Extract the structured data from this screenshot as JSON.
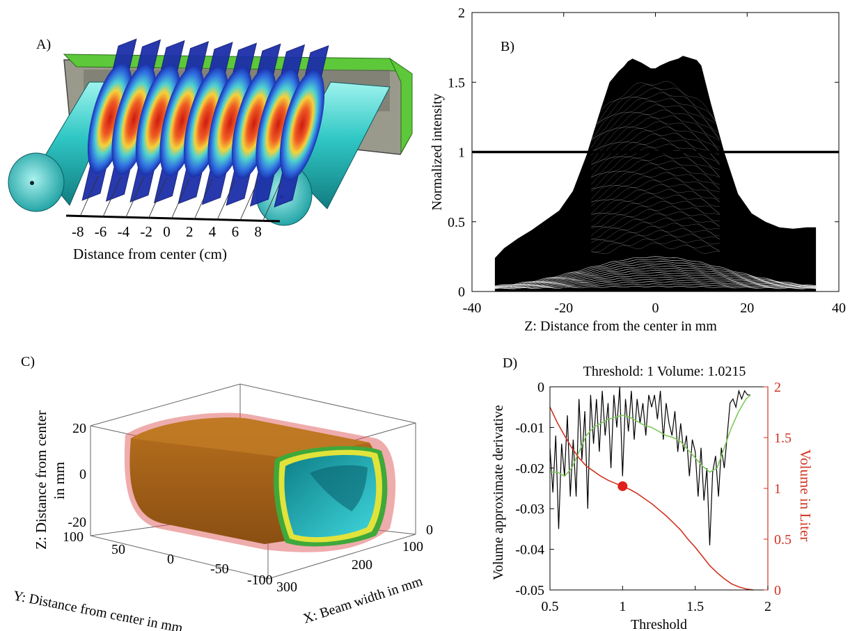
{
  "panels": {
    "A": {
      "label": "A)",
      "xlabel": "Distance from center (cm)",
      "ticks": [
        "-8",
        "-6",
        "-4",
        "-2",
        "0",
        "2",
        "4",
        "6",
        "8"
      ]
    },
    "C": {
      "label": "C)",
      "zlabel_line1": "Z: Distance from center",
      "zlabel_line2": "in mm",
      "ylabel": "Y: Distance from center in mm",
      "xlabel": "X: Beam width in mm",
      "z_ticks": [
        "20",
        "0",
        "-20"
      ],
      "y_ticks": [
        "100",
        "50",
        "0",
        "-50",
        "-100"
      ],
      "x_ticks": [
        "0",
        "100",
        "200",
        "300"
      ]
    }
  },
  "chart_data": [
    {
      "panel": "B)",
      "type": "line",
      "xlabel": "Z: Distance from the center in mm",
      "ylabel": "Normalized intensity",
      "xlim": [
        -40,
        40
      ],
      "ylim": [
        0,
        2
      ],
      "xticks": [
        -40,
        -20,
        0,
        20,
        40
      ],
      "yticks": [
        0,
        0.5,
        1,
        1.5,
        2
      ],
      "grid": false,
      "reference_line": {
        "y": 1
      },
      "envelope_upper": {
        "x": [
          -35,
          -33,
          -30,
          -27,
          -24,
          -21,
          -18,
          -15,
          -12,
          -10,
          -8,
          -7,
          -6,
          -5,
          -3,
          -1,
          0,
          1,
          3,
          5,
          6,
          7,
          9,
          10,
          12,
          15,
          18,
          21,
          24,
          27,
          30,
          33,
          35
        ],
        "y": [
          0.24,
          0.31,
          0.38,
          0.44,
          0.51,
          0.58,
          0.72,
          0.98,
          1.3,
          1.5,
          1.58,
          1.61,
          1.65,
          1.67,
          1.64,
          1.6,
          1.6,
          1.62,
          1.65,
          1.67,
          1.69,
          1.68,
          1.66,
          1.62,
          1.36,
          1.0,
          0.7,
          0.56,
          0.5,
          0.46,
          0.45,
          0.46,
          0.46
        ]
      },
      "envelope_lower": {
        "x": [
          -35,
          -20,
          -10,
          0,
          10,
          20,
          35
        ],
        "y": [
          0.0,
          0.0,
          0.0,
          0.0,
          0.0,
          0.0,
          0.0
        ]
      }
    },
    {
      "panel": "D)",
      "type": "line",
      "title": "Threshold: 1 Volume: 1.0215",
      "xlabel": "Threshold",
      "ylabel": "Volume approximate derivative",
      "y2label": "Volume in Liter",
      "xlim": [
        0.5,
        2
      ],
      "ylim": [
        -0.05,
        0
      ],
      "y2lim": [
        0,
        2
      ],
      "xticks": [
        0.5,
        1,
        1.5,
        2
      ],
      "yticks": [
        -0.05,
        -0.04,
        -0.03,
        -0.02,
        -0.01,
        0
      ],
      "y2ticks": [
        0,
        0.5,
        1,
        1.5,
        2
      ],
      "y2_color": "#d0321f",
      "series": [
        {
          "axis": "left",
          "color": "#000000",
          "x": [
            0.5,
            0.52,
            0.54,
            0.56,
            0.58,
            0.6,
            0.62,
            0.64,
            0.66,
            0.68,
            0.7,
            0.72,
            0.74,
            0.76,
            0.78,
            0.8,
            0.82,
            0.84,
            0.86,
            0.88,
            0.9,
            0.92,
            0.94,
            0.96,
            0.98,
            1.0,
            1.02,
            1.04,
            1.06,
            1.08,
            1.1,
            1.12,
            1.14,
            1.16,
            1.18,
            1.2,
            1.22,
            1.24,
            1.26,
            1.28,
            1.3,
            1.32,
            1.34,
            1.36,
            1.38,
            1.4,
            1.42,
            1.44,
            1.46,
            1.48,
            1.5,
            1.52,
            1.54,
            1.56,
            1.58,
            1.6,
            1.62,
            1.64,
            1.66,
            1.68,
            1.7,
            1.72,
            1.74,
            1.76,
            1.78,
            1.8,
            1.82,
            1.84,
            1.86,
            1.88
          ],
          "y": [
            -0.015,
            -0.026,
            -0.012,
            -0.035,
            -0.014,
            -0.022,
            -0.007,
            -0.027,
            -0.013,
            -0.027,
            -0.003,
            -0.018,
            -0.006,
            -0.03,
            -0.002,
            -0.014,
            -0.003,
            -0.016,
            -0.001,
            -0.012,
            -0.004,
            -0.02,
            -0.002,
            -0.01,
            0.0,
            -0.022,
            -0.003,
            -0.011,
            -0.001,
            -0.013,
            -0.003,
            -0.009,
            -0.004,
            -0.012,
            -0.002,
            -0.005,
            -0.002,
            -0.008,
            -0.001,
            -0.013,
            -0.004,
            -0.009,
            -0.012,
            -0.006,
            -0.016,
            -0.009,
            -0.016,
            -0.012,
            -0.022,
            -0.013,
            -0.016,
            -0.027,
            -0.015,
            -0.028,
            -0.02,
            -0.039,
            -0.021,
            -0.017,
            -0.027,
            -0.015,
            -0.02,
            -0.012,
            -0.004,
            -0.003,
            -0.005,
            -0.001,
            -0.003,
            -0.001,
            -0.002,
            -0.002
          ]
        },
        {
          "axis": "left",
          "color": "#7ec85a",
          "x": [
            0.5,
            0.55,
            0.6,
            0.65,
            0.7,
            0.75,
            0.8,
            0.85,
            0.9,
            0.95,
            1.0,
            1.05,
            1.1,
            1.15,
            1.2,
            1.25,
            1.3,
            1.35,
            1.4,
            1.45,
            1.5,
            1.55,
            1.6,
            1.65,
            1.7,
            1.75,
            1.8,
            1.85,
            1.88
          ],
          "y": [
            -0.021,
            -0.021,
            -0.022,
            -0.02,
            -0.016,
            -0.012,
            -0.01,
            -0.009,
            -0.008,
            -0.0075,
            -0.007,
            -0.0075,
            -0.0085,
            -0.0095,
            -0.01,
            -0.011,
            -0.012,
            -0.0125,
            -0.0135,
            -0.0155,
            -0.0175,
            -0.0195,
            -0.021,
            -0.02,
            -0.015,
            -0.01,
            -0.006,
            -0.003,
            -0.002
          ]
        },
        {
          "axis": "right",
          "color": "#d0321f",
          "x": [
            0.5,
            0.55,
            0.6,
            0.65,
            0.7,
            0.75,
            0.8,
            0.85,
            0.9,
            0.95,
            1.0,
            1.05,
            1.1,
            1.15,
            1.2,
            1.25,
            1.3,
            1.35,
            1.4,
            1.45,
            1.5,
            1.55,
            1.6,
            1.65,
            1.7,
            1.75,
            1.8,
            1.85,
            1.9
          ],
          "y": [
            1.8,
            1.65,
            1.52,
            1.4,
            1.3,
            1.22,
            1.17,
            1.12,
            1.08,
            1.05,
            1.02,
            0.99,
            0.95,
            0.9,
            0.85,
            0.79,
            0.73,
            0.66,
            0.59,
            0.5,
            0.42,
            0.33,
            0.24,
            0.17,
            0.11,
            0.06,
            0.03,
            0.01,
            0.0
          ]
        }
      ],
      "marker": {
        "x": 1,
        "y": 1.0215,
        "axis": "right",
        "color": "#e0201a"
      }
    }
  ]
}
